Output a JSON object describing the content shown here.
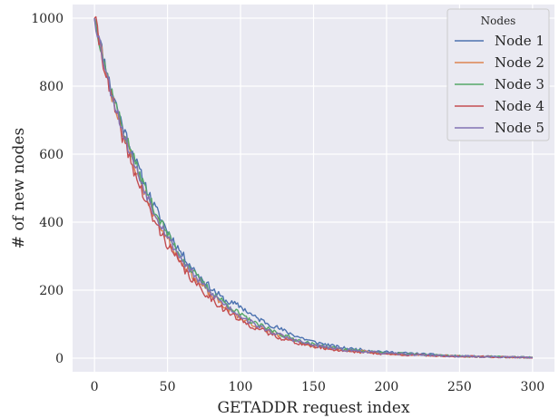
{
  "chart_data": {
    "type": "line",
    "title": "",
    "xlabel": "GETADDR request index",
    "ylabel": "# of new nodes",
    "xlim": [
      -15,
      315
    ],
    "ylim": [
      -40,
      1040
    ],
    "xticks": [
      0,
      50,
      100,
      150,
      200,
      250,
      300
    ],
    "yticks": [
      0,
      200,
      400,
      600,
      800,
      1000
    ],
    "grid": true,
    "legend": {
      "title": "Nodes",
      "placement": "top-right"
    },
    "series": [
      {
        "name": "Node 1",
        "color": "#4c72b0",
        "amplitude": 14,
        "seed": 11,
        "x": [
          0,
          10,
          20,
          30,
          40,
          50,
          60,
          70,
          80,
          90,
          100,
          110,
          120,
          130,
          140,
          150,
          170,
          200,
          250,
          300
        ],
        "y": [
          1000,
          815,
          675,
          560,
          455,
          375,
          305,
          250,
          205,
          168,
          152,
          120,
          100,
          80,
          62,
          48,
          30,
          18,
          6,
          2
        ]
      },
      {
        "name": "Node 2",
        "color": "#dd8452",
        "amplitude": 14,
        "seed": 23,
        "x": [
          0,
          10,
          20,
          30,
          40,
          50,
          60,
          70,
          80,
          90,
          100,
          110,
          120,
          130,
          140,
          150,
          170,
          200,
          250,
          300
        ],
        "y": [
          1000,
          800,
          655,
          535,
          430,
          350,
          282,
          228,
          185,
          150,
          118,
          95,
          78,
          60,
          46,
          36,
          24,
          14,
          5,
          2
        ]
      },
      {
        "name": "Node 3",
        "color": "#55a868",
        "amplitude": 14,
        "seed": 37,
        "x": [
          0,
          10,
          20,
          30,
          40,
          50,
          60,
          70,
          80,
          90,
          100,
          110,
          120,
          130,
          140,
          150,
          170,
          200,
          250,
          300
        ],
        "y": [
          1000,
          810,
          668,
          550,
          445,
          365,
          295,
          240,
          195,
          160,
          128,
          102,
          84,
          66,
          52,
          40,
          26,
          15,
          6,
          2
        ]
      },
      {
        "name": "Node 4",
        "color": "#c44e52",
        "amplitude": 16,
        "seed": 41,
        "x": [
          0,
          10,
          20,
          30,
          40,
          50,
          60,
          70,
          80,
          90,
          100,
          110,
          120,
          130,
          140,
          150,
          170,
          200,
          250,
          300
        ],
        "y": [
          1000,
          790,
          640,
          515,
          410,
          335,
          268,
          215,
          175,
          140,
          110,
          90,
          72,
          56,
          44,
          34,
          22,
          12,
          5,
          2
        ]
      },
      {
        "name": "Node 5",
        "color": "#8172b3",
        "amplitude": 14,
        "seed": 53,
        "x": [
          0,
          10,
          20,
          30,
          40,
          50,
          60,
          70,
          80,
          90,
          100,
          110,
          120,
          130,
          140,
          150,
          170,
          200,
          250,
          300
        ],
        "y": [
          1000,
          805,
          660,
          540,
          438,
          358,
          288,
          234,
          190,
          155,
          124,
          99,
          80,
          63,
          49,
          38,
          25,
          14,
          5,
          2
        ]
      }
    ]
  }
}
